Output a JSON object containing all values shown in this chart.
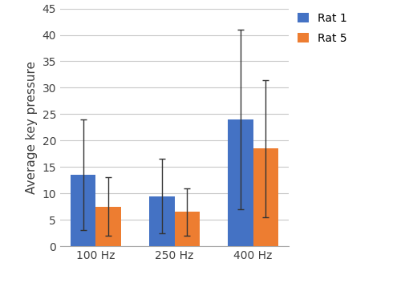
{
  "categories": [
    "100 Hz",
    "250 Hz",
    "400 Hz"
  ],
  "rat1_values": [
    13.5,
    9.5,
    24.0
  ],
  "rat5_values": [
    7.5,
    6.5,
    18.5
  ],
  "rat1_errors": [
    10.5,
    7.0,
    17.0
  ],
  "rat5_errors": [
    5.5,
    4.5,
    13.0
  ],
  "rat1_color": "#4472C4",
  "rat5_color": "#ED7D31",
  "ylabel": "Average key pressure",
  "ylim": [
    0,
    45
  ],
  "yticks": [
    0,
    5,
    10,
    15,
    20,
    25,
    30,
    35,
    40,
    45
  ],
  "legend_labels": [
    "Rat 1",
    "Rat 5"
  ],
  "bar_width": 0.32,
  "label_fontsize": 11,
  "tick_fontsize": 10,
  "legend_fontsize": 10,
  "background_color": "#ffffff",
  "grid_color": "#c8c8c8"
}
